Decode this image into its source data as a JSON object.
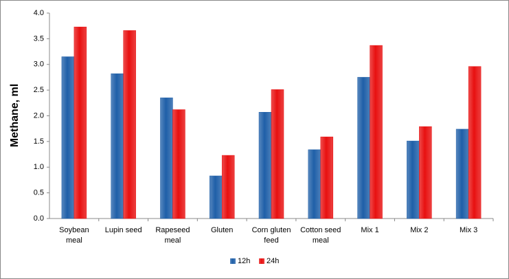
{
  "chart_data": {
    "type": "bar",
    "y_label": "Methane, ml",
    "categories": [
      "Soybean meal",
      "Lupin seed",
      "Rapeseed meal",
      "Gluten",
      "Corn gluten feed",
      "Cotton seed meal",
      "Mix 1",
      "Mix 2",
      "Mix 3"
    ],
    "series": [
      {
        "name": "12h",
        "color": "#1f5fa8",
        "values": [
          3.15,
          2.82,
          2.35,
          0.83,
          2.07,
          1.34,
          2.75,
          1.51,
          1.74
        ]
      },
      {
        "name": "24h",
        "color": "#e81010",
        "values": [
          3.73,
          3.66,
          2.12,
          1.23,
          2.51,
          1.59,
          3.37,
          1.79,
          2.96
        ]
      }
    ],
    "ylim": [
      0,
      4
    ],
    "yticks": [
      {
        "value": 0,
        "label": "0.0"
      },
      0.5,
      {
        "value": 1,
        "label": "1.0"
      },
      1.5,
      {
        "value": 2,
        "label": "2.0"
      },
      2.5,
      {
        "value": 3,
        "label": "3.0"
      },
      3.5,
      {
        "value": 4,
        "label": "4.0"
      }
    ],
    "grid": false,
    "legend": "bottom"
  }
}
